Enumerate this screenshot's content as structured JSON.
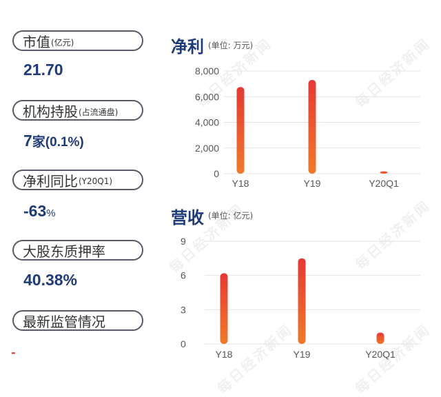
{
  "watermark": "每日经济新闻",
  "sidebar": {
    "items": [
      {
        "label": "市值",
        "sub": "(亿元)",
        "value": "21.70",
        "value_suffix": ""
      },
      {
        "label": "机构持股",
        "sub": "(占流通盘)",
        "value": "7",
        "value_suffix": "家(0.1%)"
      },
      {
        "label": "净利同比",
        "sub": "(Y20Q1)",
        "value": "-63",
        "value_suffix": "%"
      },
      {
        "label": "大股东质押率",
        "sub": "",
        "value": "40.38%",
        "value_suffix": ""
      },
      {
        "label": "最新监管情况",
        "sub": "",
        "value": "-",
        "value_suffix": ""
      }
    ]
  },
  "charts": {
    "profit": {
      "title": "净利",
      "unit": "(单位: 万元)"
    },
    "revenue": {
      "title": "营收",
      "unit": "(单位: 亿元)"
    }
  },
  "colors": {
    "bar_top": "#e53935",
    "bar_bottom": "#ef7a2a",
    "title": "#1f3a78",
    "axis_text": "#555555"
  },
  "chart_data": [
    {
      "type": "bar",
      "title": "净利",
      "unit": "(单位: 万元)",
      "categories": [
        "Y18",
        "Y19",
        "Y20Q1"
      ],
      "values": [
        6750,
        7300,
        180
      ],
      "yticks": [
        "0",
        "2,000",
        "4,000",
        "6,000",
        "8,000"
      ],
      "ylim": [
        0,
        8000
      ],
      "grid": true
    },
    {
      "type": "bar",
      "title": "营收",
      "unit": "(单位: 亿元)",
      "categories": [
        "Y18",
        "Y19",
        "Y20Q1"
      ],
      "values": [
        6.2,
        7.5,
        1.0
      ],
      "yticks": [
        "0",
        "3",
        "6",
        "9"
      ],
      "ylim": [
        0,
        9
      ],
      "grid": true
    }
  ]
}
